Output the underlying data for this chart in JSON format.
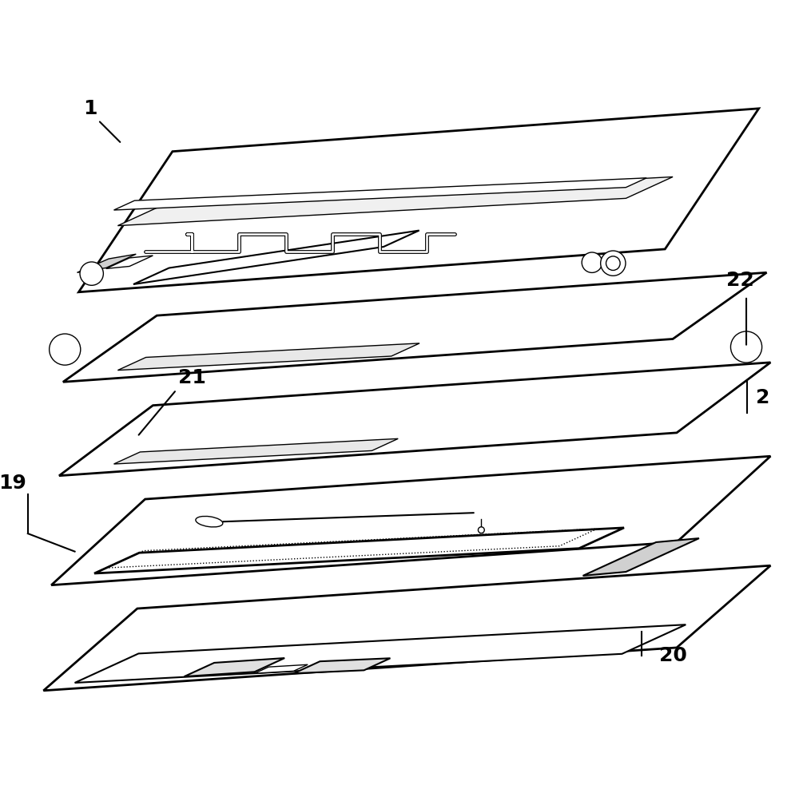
{
  "title": "",
  "background_color": "#ffffff",
  "label_1": "1",
  "label_2": "2",
  "label_19": "19",
  "label_20": "20",
  "label_21": "21",
  "label_22": "22",
  "line_color": "#000000",
  "fill_color": "#ffffff",
  "dashed_color": "#333333"
}
